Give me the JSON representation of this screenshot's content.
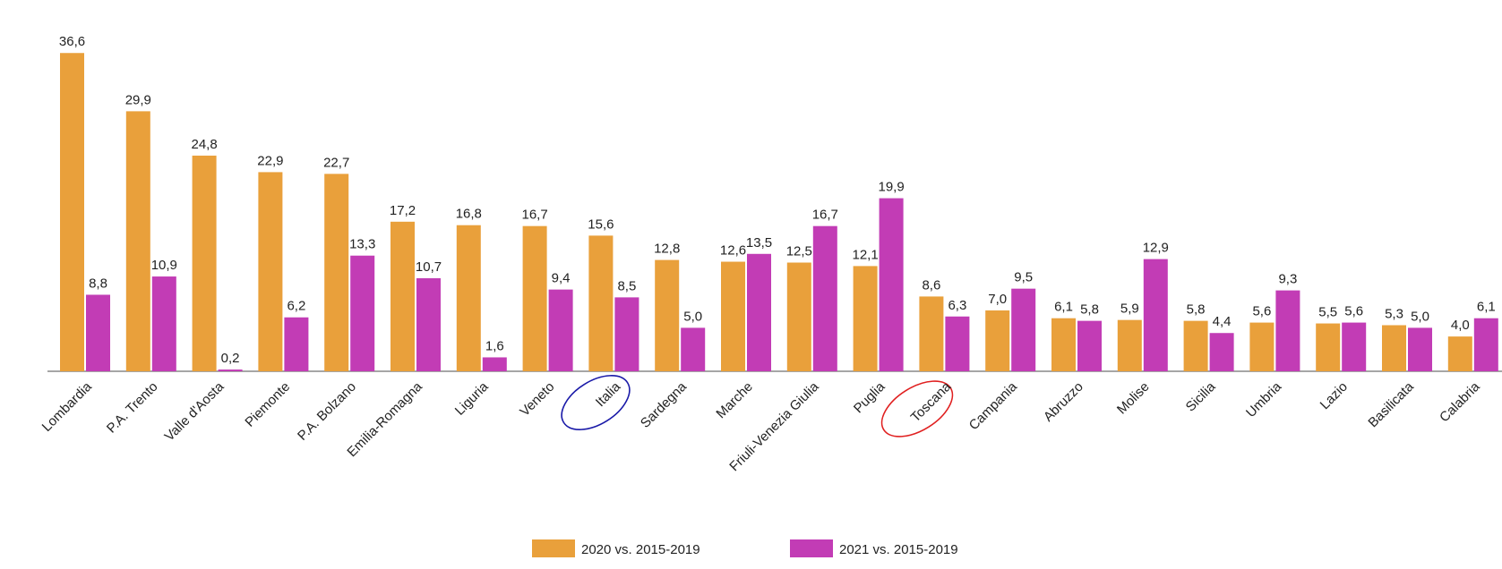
{
  "chart_data": {
    "type": "bar",
    "categories": [
      "Lombardia",
      "P.A. Trento",
      "Valle d'Aosta",
      "Piemonte",
      "P.A. Bolzano",
      "Emilia-Romagna",
      "Liguria",
      "Veneto",
      "Italia",
      "Sardegna",
      "Marche",
      "Friuli-Venezia Giulia",
      "Puglia",
      "Toscana",
      "Campania",
      "Abruzzo",
      "Molise",
      "Sicilia",
      "Umbria",
      "Lazio",
      "Basilicata",
      "Calabria"
    ],
    "series": [
      {
        "name": "2020 vs. 2015-2019",
        "color": "#e9a03b",
        "values": [
          36.6,
          29.9,
          24.8,
          22.9,
          22.7,
          17.2,
          16.8,
          16.7,
          15.6,
          12.8,
          12.6,
          12.5,
          12.1,
          8.6,
          7.0,
          6.1,
          5.9,
          5.8,
          5.6,
          5.5,
          5.3,
          4.0
        ],
        "value_labels": [
          "36,6",
          "29,9",
          "24,8",
          "22,9",
          "22,7",
          "17,2",
          "16,8",
          "16,7",
          "15,6",
          "12,8",
          "12,6",
          "12,5",
          "12,1",
          "8,6",
          "7,0",
          "6,1",
          "5,9",
          "5,8",
          "5,6",
          "5,5",
          "5,3",
          "4,0"
        ]
      },
      {
        "name": "2021 vs. 2015-2019",
        "color": "#c23cb5",
        "values": [
          8.8,
          10.9,
          0.2,
          6.2,
          13.3,
          10.7,
          1.6,
          9.4,
          8.5,
          5.0,
          13.5,
          16.7,
          19.9,
          6.3,
          9.5,
          5.8,
          12.9,
          4.4,
          9.3,
          5.6,
          5.0,
          6.1
        ],
        "value_labels": [
          "8,8",
          "10,9",
          "0,2",
          "6,2",
          "13,3",
          "10,7",
          "1,6",
          "9,4",
          "8,5",
          "5,0",
          "13,5",
          "16,7",
          "19,9",
          "6,3",
          "9,5",
          "5,8",
          "12,9",
          "4,4",
          "9,3",
          "5,6",
          "5,0",
          "6,1"
        ]
      }
    ]
  }
}
